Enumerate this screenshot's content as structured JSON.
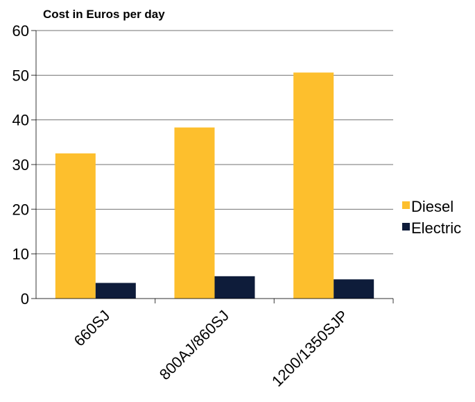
{
  "chart_data": {
    "type": "bar",
    "title": "Cost in Euros per day",
    "xlabel": "",
    "ylabel": "",
    "categories": [
      "660SJ",
      "800AJ/860SJ",
      "1200/1350SJP"
    ],
    "series": [
      {
        "name": "Diesel",
        "values": [
          32.5,
          38.3,
          50.6
        ],
        "color": "#fdbf2d"
      },
      {
        "name": "Electric",
        "values": [
          3.5,
          5.0,
          4.3
        ],
        "color": "#0e1c3a"
      }
    ],
    "ylim": [
      0,
      60
    ],
    "yticks": [
      "0",
      "10",
      "20",
      "30",
      "40",
      "50",
      "60"
    ],
    "grid": true,
    "legend_position": "right"
  }
}
